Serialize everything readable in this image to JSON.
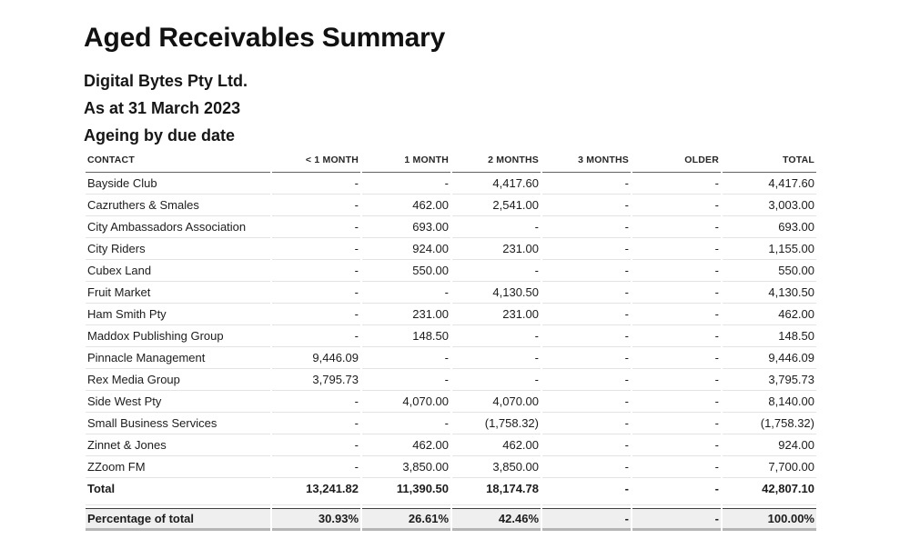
{
  "report": {
    "title": "Aged Receivables Summary",
    "company": "Digital Bytes Pty Ltd.",
    "as_at": "As at 31 March 2023",
    "basis": "Ageing by due date"
  },
  "table": {
    "columns": [
      "CONTACT",
      "< 1 MONTH",
      "1 MONTH",
      "2 MONTHS",
      "3 MONTHS",
      "OLDER",
      "TOTAL"
    ],
    "rows": [
      {
        "contact": "Bayside Club",
        "values": [
          "-",
          "-",
          "4,417.60",
          "-",
          "-",
          "4,417.60"
        ]
      },
      {
        "contact": "Cazruthers & Smales",
        "values": [
          "-",
          "462.00",
          "2,541.00",
          "-",
          "-",
          "3,003.00"
        ]
      },
      {
        "contact": "City Ambassadors Association",
        "values": [
          "-",
          "693.00",
          "-",
          "-",
          "-",
          "693.00"
        ]
      },
      {
        "contact": "City Riders",
        "values": [
          "-",
          "924.00",
          "231.00",
          "-",
          "-",
          "1,155.00"
        ]
      },
      {
        "contact": "Cubex Land",
        "values": [
          "-",
          "550.00",
          "-",
          "-",
          "-",
          "550.00"
        ]
      },
      {
        "contact": "Fruit Market",
        "values": [
          "-",
          "-",
          "4,130.50",
          "-",
          "-",
          "4,130.50"
        ]
      },
      {
        "contact": "Ham Smith Pty",
        "values": [
          "-",
          "231.00",
          "231.00",
          "-",
          "-",
          "462.00"
        ]
      },
      {
        "contact": "Maddox Publishing Group",
        "values": [
          "-",
          "148.50",
          "-",
          "-",
          "-",
          "148.50"
        ]
      },
      {
        "contact": "Pinnacle Management",
        "values": [
          "9,446.09",
          "-",
          "-",
          "-",
          "-",
          "9,446.09"
        ]
      },
      {
        "contact": "Rex Media Group",
        "values": [
          "3,795.73",
          "-",
          "-",
          "-",
          "-",
          "3,795.73"
        ]
      },
      {
        "contact": "Side West Pty",
        "values": [
          "-",
          "4,070.00",
          "4,070.00",
          "-",
          "-",
          "8,140.00"
        ]
      },
      {
        "contact": "Small Business Services",
        "values": [
          "-",
          "-",
          "(1,758.32)",
          "-",
          "-",
          "(1,758.32)"
        ]
      },
      {
        "contact": "Zinnet & Jones",
        "values": [
          "-",
          "462.00",
          "462.00",
          "-",
          "-",
          "924.00"
        ]
      },
      {
        "contact": "ZZoom FM",
        "values": [
          "-",
          "3,850.00",
          "3,850.00",
          "-",
          "-",
          "7,700.00"
        ]
      }
    ],
    "total_row": {
      "label": "Total",
      "values": [
        "13,241.82",
        "11,390.50",
        "18,174.78",
        "-",
        "-",
        "42,807.10"
      ]
    },
    "percentage_row": {
      "label": "Percentage of total",
      "values": [
        "30.93%",
        "26.61%",
        "42.46%",
        "-",
        "-",
        "100.00%"
      ]
    }
  },
  "colors": {
    "text": "#1c1c1c",
    "header_rule": "#616161",
    "row_rule": "#e4e4e4",
    "pct_row_background": "#efefef",
    "pct_row_top_rule": "#3f3f3f",
    "pct_row_bottom_rule": "#b5b5b5"
  }
}
